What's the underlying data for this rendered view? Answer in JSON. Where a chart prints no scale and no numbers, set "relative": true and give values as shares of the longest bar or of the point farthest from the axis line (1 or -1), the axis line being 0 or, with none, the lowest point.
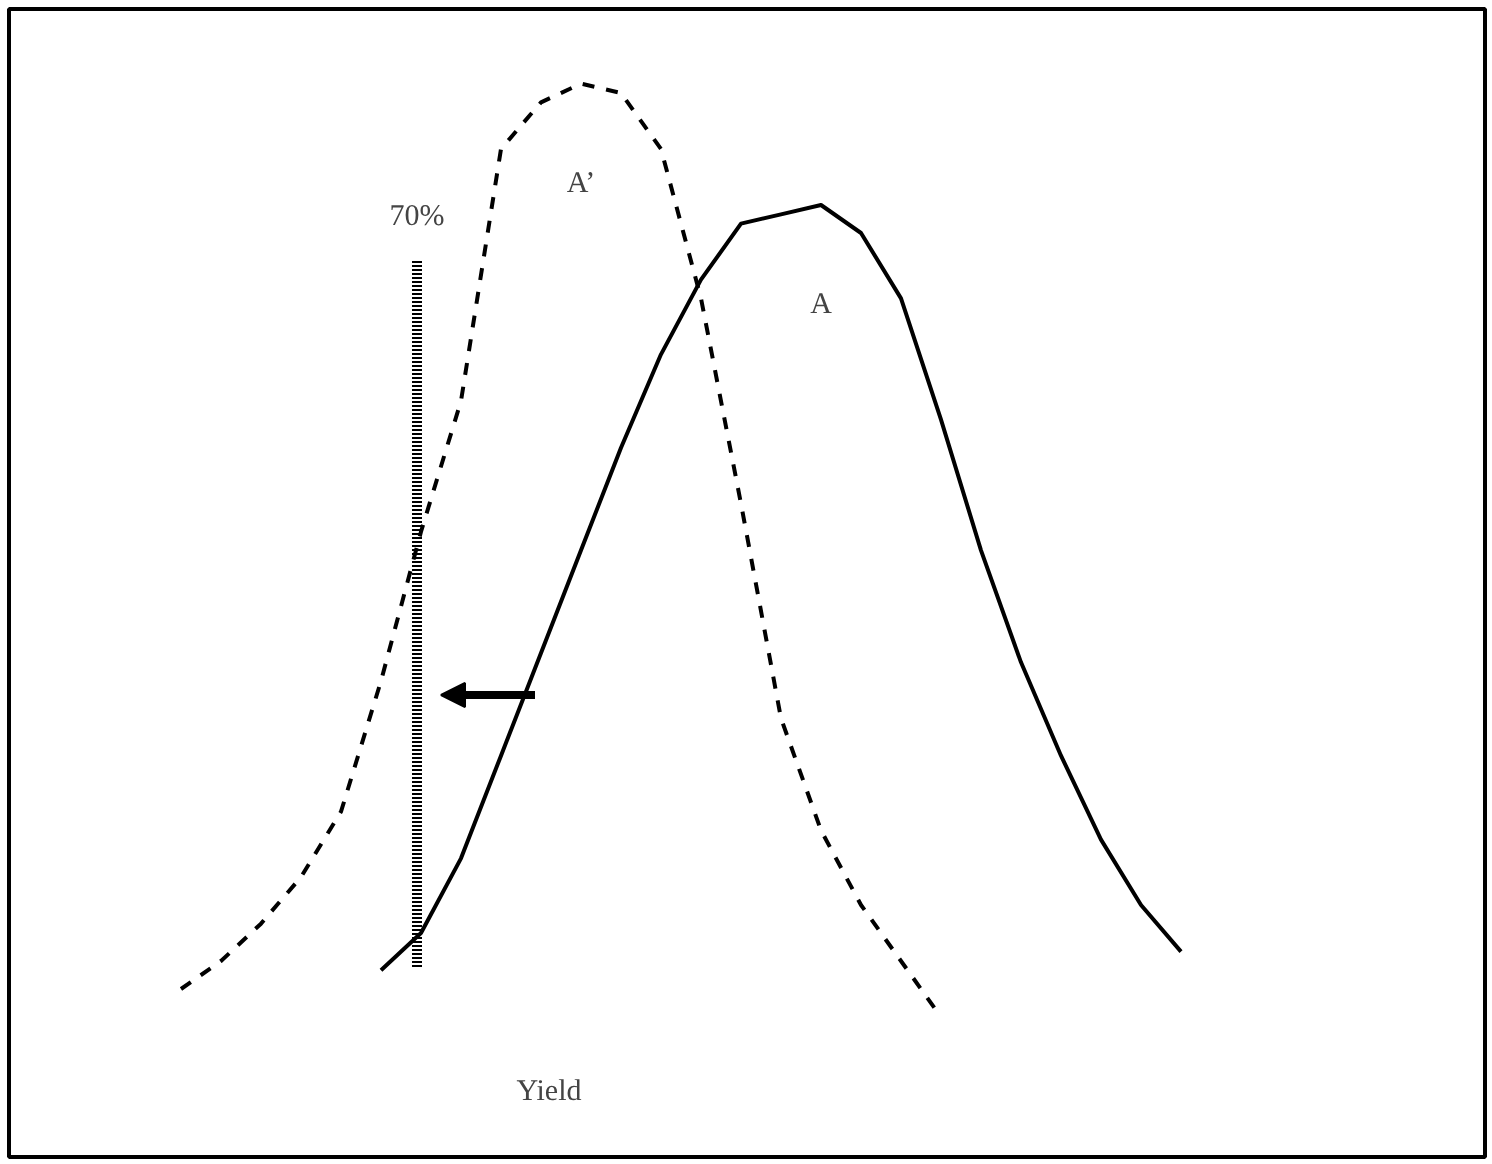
{
  "chart_data": {
    "type": "line",
    "relative": true,
    "xlabel": "Yield",
    "grid": false,
    "marker": "none",
    "categories": [
      null,
      null,
      null,
      null,
      null,
      null,
      null,
      null,
      null,
      null,
      null,
      null,
      null,
      null,
      null,
      null,
      null,
      null,
      null,
      null,
      null,
      null,
      null,
      null,
      null,
      null,
      null
    ],
    "series": [
      {
        "name": "A’",
        "color": "#000000",
        "line_style": "dashed",
        "values": [
          0.03,
          0.06,
          0.1,
          0.15,
          0.22,
          0.36,
          0.52,
          0.66,
          0.93,
          0.98,
          1.0,
          0.99,
          0.93,
          0.77,
          0.55,
          0.32,
          0.2,
          0.12,
          0.06,
          0.0,
          null,
          null,
          null,
          null,
          null,
          null,
          null
        ]
      },
      {
        "name": "A",
        "color": "#000000",
        "line_style": "solid",
        "values": [
          null,
          null,
          null,
          null,
          null,
          0.05,
          0.09,
          0.17,
          0.28,
          0.39,
          0.5,
          0.61,
          0.71,
          0.79,
          0.85,
          0.86,
          0.87,
          0.84,
          0.77,
          0.64,
          0.5,
          0.38,
          0.28,
          0.19,
          0.12,
          0.07,
          null
        ]
      }
    ],
    "annotations": [
      "70%"
    ]
  }
}
